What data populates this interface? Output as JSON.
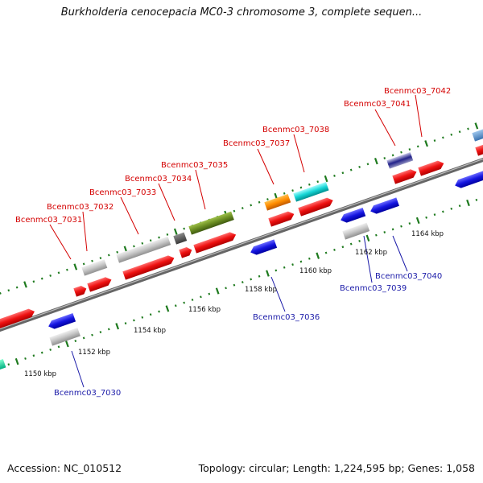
{
  "header": {
    "title": "Burkholderia cenocepacia MC0-3 chromosome 3, complete sequen..."
  },
  "footer": {
    "accession_label": "Accession: NC_010512",
    "topology_label": "Topology: circular; Length: 1,224,595 bp; Genes: 1,058"
  },
  "colors": {
    "forward_label": "#d40000",
    "reverse_label": "#1a1aa8",
    "backbone": "#7a7a7a",
    "tick": "#1e7a1e"
  },
  "axis_labels": [
    "1150 kbp",
    "1152 kbp",
    "1154 kbp",
    "1156 kbp",
    "1158 kbp",
    "1160 kbp",
    "1162 kbp",
    "1164 kbp"
  ],
  "gene_labels": {
    "forward": [
      "Bcenmc03_7031",
      "Bcenmc03_7032",
      "Bcenmc03_7033",
      "Bcenmc03_7034",
      "Bcenmc03_7035",
      "Bcenmc03_7037",
      "Bcenmc03_7038",
      "Bcenmc03_7041",
      "Bcenmc03_7042"
    ],
    "reverse": [
      "Bcenmc03_7030",
      "Bcenmc03_7036",
      "Bcenmc03_7039",
      "Bcenmc03_7040"
    ]
  }
}
